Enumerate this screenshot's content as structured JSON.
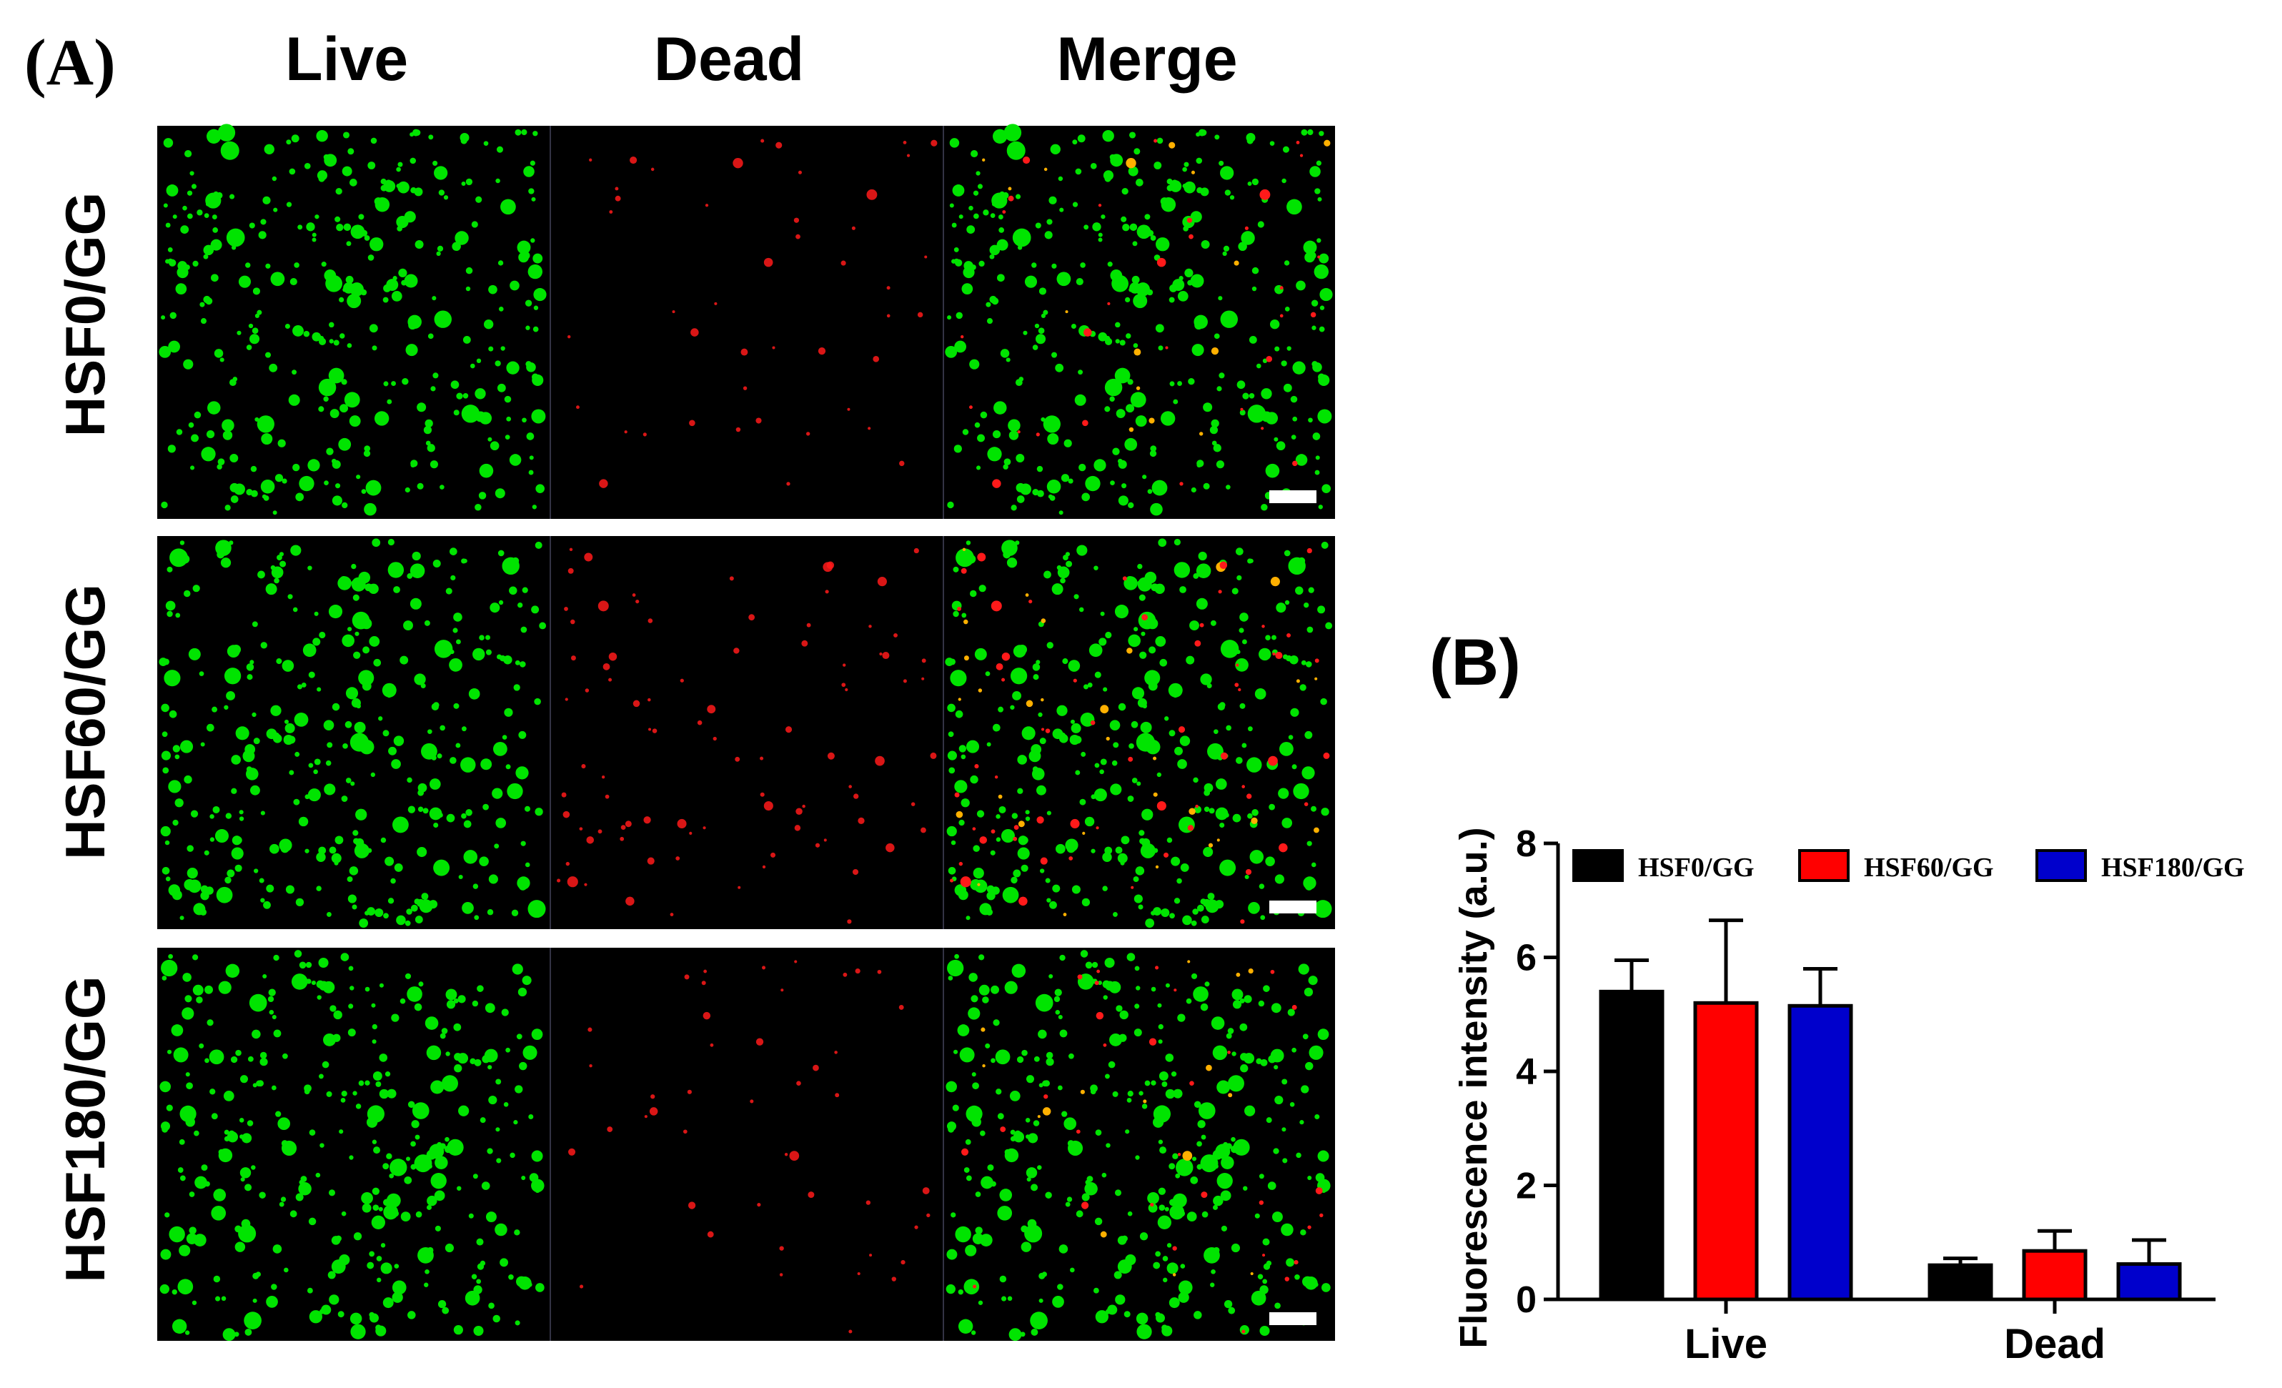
{
  "panel_a": {
    "label": "(A)",
    "columns": [
      "Live",
      "Dead",
      "Merge"
    ],
    "rows": [
      "HSF0/GG",
      "HSF60/GG",
      "HSF180/GG"
    ],
    "colors": {
      "live": "#00e400",
      "dead": "#ff1a1a",
      "merge_overlap": "#ffb000",
      "background": "#000000",
      "scale_bar": "#ffffff"
    }
  },
  "panel_b": {
    "label": "(B)"
  },
  "chart_data": {
    "type": "bar",
    "categories": [
      "Live",
      "Dead"
    ],
    "series": [
      {
        "name": "HSF0/GG",
        "values": [
          5.4,
          0.6
        ],
        "errors": [
          0.55,
          0.12
        ],
        "color": "#000000"
      },
      {
        "name": "HSF60/GG",
        "values": [
          5.2,
          0.85
        ],
        "errors": [
          1.45,
          0.35
        ],
        "color": "#ff0000"
      },
      {
        "name": "HSF180/GG",
        "values": [
          5.15,
          0.62
        ],
        "errors": [
          0.65,
          0.42
        ],
        "color": "#0000cc"
      }
    ],
    "title": "",
    "xlabel": "",
    "ylabel": "Fluorescence intensity (a.u.)",
    "ylim": [
      0,
      8
    ],
    "yticks": [
      "0",
      "2",
      "4",
      "6",
      "8"
    ],
    "grid": false,
    "legend": "top"
  }
}
